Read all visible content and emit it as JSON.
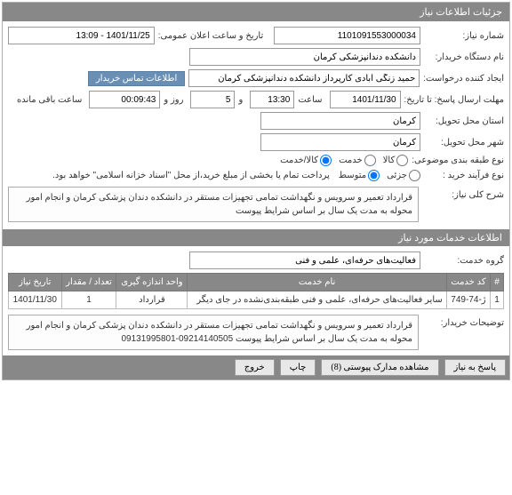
{
  "header": {
    "title": "جزئیات اطلاعات نیاز"
  },
  "form": {
    "need_number_label": "شماره نیاز:",
    "need_number": "1101091553000034",
    "announce_label": "تاریخ و ساعت اعلان عمومی:",
    "announce_value": "1401/11/25 - 13:09",
    "buyer_device_label": "نام دستگاه خریدار:",
    "buyer_device": "دانشکده دندانپزشکی کرمان",
    "creator_label": "ایجاد کننده درخواست:",
    "creator": "حمید زنگی آبادی کارپرداز دانشکده دندانپزشکی کرمان",
    "contact_btn": "اطلاعات تماس خریدار",
    "deadline_label": "مهلت ارسال پاسخ: تا تاریخ:",
    "deadline_date": "1401/11/30",
    "time_label": "ساعت",
    "deadline_time": "13:30",
    "and_label": "و",
    "days_value": "5",
    "day_label": "روز و",
    "remain_time": "00:09:43",
    "remain_label": "ساعت باقی مانده",
    "delivery_province_label": "استان محل تحویل:",
    "delivery_province": "کرمان",
    "delivery_city_label": "شهر محل تحویل:",
    "delivery_city": "کرمان",
    "category_label": "نوع طبقه بندی موضوعی:",
    "cat_goods": "کالا",
    "cat_service": "خدمت",
    "cat_both": "کالا/خدمت",
    "process_label": "نوع فرآیند خرید :",
    "proc_minor": "جزئی",
    "proc_medium": "متوسط",
    "process_note": "پرداخت تمام یا بخشی از مبلغ خرید،از محل \"اسناد خزانه اسلامی\" خواهد بود.",
    "general_desc_label": "شرح کلی نیاز:",
    "general_desc": "قرارداد تعمیر و سرویس و نگهداشت  تمامی تجهیزات مستقر در دانشکده دندان پزشکی کرمان و انجام امور محوله به مدت یک سال بر اساس شرایط پیوست"
  },
  "services_header": "اطلاعات خدمات مورد نیاز",
  "group_label": "گروه خدمت:",
  "group_value": "فعالیت‌های حرفه‌ای، علمی و فنی",
  "table": {
    "columns": [
      "#",
      "کد خدمت",
      "نام خدمت",
      "واحد اندازه گیری",
      "تعداد / مقدار",
      "تاریخ نیاز"
    ],
    "rows": [
      [
        "1",
        "ژ-74-749",
        "سایر فعالیت‌های حرفه‌ای، علمی و فنی طبقه‌بندی‌نشده در جای دیگر",
        "قرارداد",
        "1",
        "1401/11/30"
      ]
    ]
  },
  "buyer_desc_label": "توضیحات خریدار:",
  "buyer_desc": "قرارداد تعمیر و سرویس و نگهداشت  تمامی تجهیزات مستقر در دانشکده دندان پزشکی کرمان و انجام امور محوله به مدت یک سال بر اساس شرایط پیوست 09214140505-09131995801",
  "footer": {
    "reply": "پاسخ به نیاز",
    "attachments": "مشاهده مدارک پیوستی (8)",
    "print": "چاپ",
    "exit": "خروج"
  },
  "radio_state": {
    "category_selected": "both",
    "process_selected": "medium"
  },
  "colors": {
    "header_bg": "#888888",
    "header_fg": "#ffffff",
    "border": "#b0b0b0",
    "contact_btn_bg": "#6a8fb5"
  }
}
